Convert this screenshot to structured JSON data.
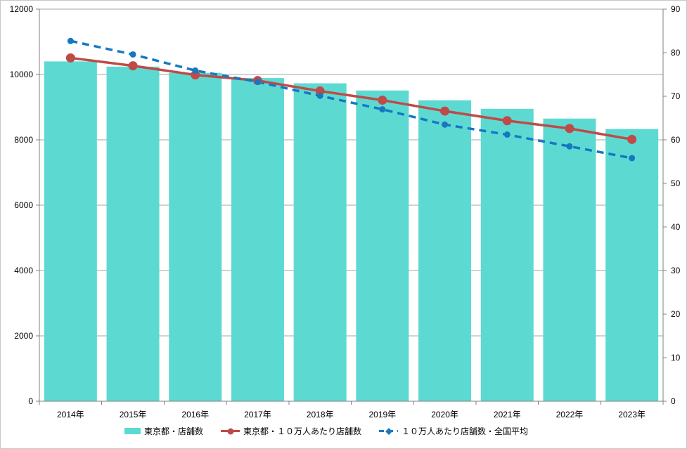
{
  "chart_data": {
    "type": "combo-bar-line",
    "title": "",
    "categories": [
      "2014年",
      "2015年",
      "2016年",
      "2017年",
      "2018年",
      "2019年",
      "2020年",
      "2021年",
      "2022年",
      "2023年"
    ],
    "series": [
      {
        "name": "東京都・店舗数",
        "type": "bar",
        "axis": "left",
        "color": "#5CDAD2",
        "values": [
          10400,
          10240,
          10050,
          9890,
          9730,
          9510,
          9210,
          8950,
          8650,
          8330
        ]
      },
      {
        "name": "東京都・１０万人あたり店舗数",
        "type": "line",
        "axis": "right",
        "color": "#BE4B48",
        "marker": "circle",
        "values": [
          78.8,
          77.0,
          74.9,
          73.6,
          71.2,
          69.1,
          66.6,
          64.4,
          62.6,
          60.1
        ]
      },
      {
        "name": "１０万人あたり店舗数・全国平均",
        "type": "line-dashed",
        "axis": "right",
        "color": "#1778C2",
        "marker": "circle",
        "values": [
          82.7,
          79.6,
          75.9,
          73.3,
          70.1,
          67.0,
          63.5,
          61.2,
          58.5,
          55.8
        ]
      }
    ],
    "left_axis": {
      "label": "",
      "min": 0,
      "max": 12000,
      "step": 2000
    },
    "right_axis": {
      "label": "",
      "min": 0,
      "max": 90,
      "step": 10
    },
    "grid": true,
    "legend_position": "bottom",
    "colors": {
      "gridline": "#A6A6A6",
      "axis": "#808080",
      "text": "#000000",
      "background": "#FFFFFF"
    }
  }
}
